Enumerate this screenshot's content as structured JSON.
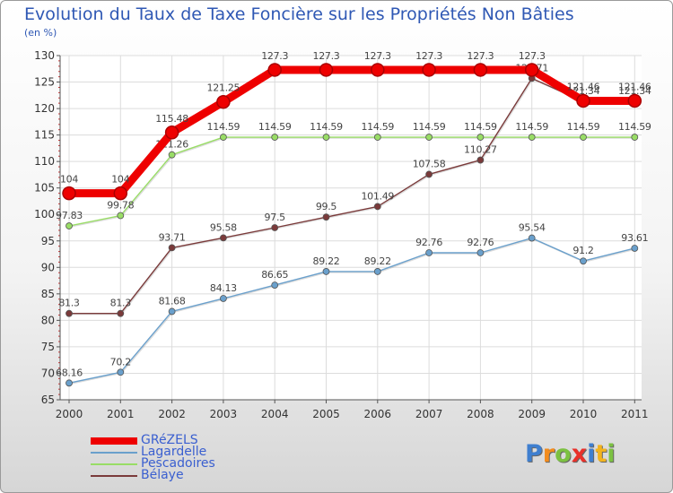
{
  "page": {
    "title": "Evolution du Taux de Taxe Foncière sur les Propriétés Non Bâties",
    "unit": "(en %)"
  },
  "chart_data": {
    "type": "line",
    "title": "Evolution du Taux de Taxe Foncière sur les Propriétés Non Bâties",
    "ylabel": "(en %)",
    "xlabel": "",
    "ylim": [
      65,
      130
    ],
    "yticks": [
      65,
      70,
      75,
      80,
      85,
      90,
      95,
      100,
      105,
      110,
      115,
      120,
      125,
      130
    ],
    "categories": [
      "2000",
      "2001",
      "2002",
      "2003",
      "2004",
      "2005",
      "2006",
      "2007",
      "2008",
      "2009",
      "2010",
      "2011"
    ],
    "grid": true,
    "legend_position": "bottom-left",
    "series": [
      {
        "name": "GRéZELS",
        "color": "#ee0000",
        "emphasis": true,
        "values": [
          104,
          104,
          115.48,
          121.25,
          127.3,
          127.3,
          127.3,
          127.3,
          127.3,
          127.3,
          121.46,
          121.46
        ],
        "labels": [
          "104",
          "104",
          "115.48",
          "121.25",
          "127.3",
          "127.3",
          "127.3",
          "127.3",
          "127.3",
          "127.3",
          "121.46",
          "121.46"
        ]
      },
      {
        "name": "Lagardelle",
        "color": "#6aa0cc",
        "values": [
          68.16,
          70.2,
          81.68,
          84.13,
          86.65,
          89.22,
          89.22,
          92.76,
          92.76,
          95.54,
          91.2,
          93.61
        ],
        "labels": [
          "68.16",
          "70.2",
          "81.68",
          "84.13",
          "86.65",
          "89.22",
          "89.22",
          "92.76",
          "92.76",
          "95.54",
          "91.2",
          "93.61"
        ]
      },
      {
        "name": "Pescadoires",
        "color": "#99dd66",
        "values": [
          97.83,
          99.78,
          111.26,
          114.59,
          114.59,
          114.59,
          114.59,
          114.59,
          114.59,
          114.59,
          114.59,
          114.59
        ],
        "labels": [
          "97.83",
          "99.78",
          "111.26",
          "114.59",
          "114.59",
          "114.59",
          "114.59",
          "114.59",
          "114.59",
          "114.59",
          "114.59",
          "114.59"
        ]
      },
      {
        "name": "Bélaye",
        "color": "#7a3a3a",
        "values": [
          81.3,
          81.3,
          93.71,
          95.58,
          97.5,
          99.5,
          101.49,
          107.58,
          110.27,
          125.71,
          121.34,
          121.34
        ],
        "labels": [
          "81.3",
          "81.3",
          "93.71",
          "95.58",
          "97.5",
          "99.5",
          "101.49",
          "107.58",
          "110.27",
          "125.71",
          "121.34",
          "121.34"
        ]
      }
    ]
  },
  "logo": {
    "letters": [
      {
        "ch": "P",
        "color": "#3f7fcf"
      },
      {
        "ch": "r",
        "color": "#f28c1e"
      },
      {
        "ch": "o",
        "color": "#7cc142"
      },
      {
        "ch": "x",
        "color": "#e9302a"
      },
      {
        "ch": "i",
        "color": "#3f7fcf"
      },
      {
        "ch": "t",
        "color": "#f2b31e"
      },
      {
        "ch": "i",
        "color": "#7cc142"
      }
    ]
  }
}
